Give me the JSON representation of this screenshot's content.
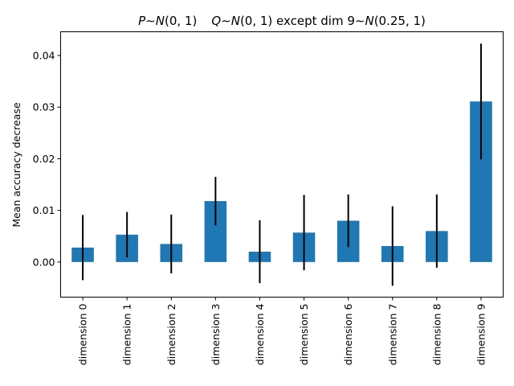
{
  "chart_data": {
    "type": "bar",
    "title": {
      "p": "P",
      "sim": "∼",
      "pdist": "N",
      "pargs": "(0, 1)",
      "q": "Q",
      "qdist": "N",
      "qargs": "(0, 1)",
      "except": " except dim 9",
      "dist9": "N",
      "args9": "(0.25, 1)"
    },
    "ylabel": "Mean accuracy decrease",
    "xlabel": "",
    "categories": [
      "dimension 0",
      "dimension 1",
      "dimension 2",
      "dimension 3",
      "dimension 4",
      "dimension 5",
      "dimension 6",
      "dimension 7",
      "dimension 8",
      "dimension 9"
    ],
    "values": [
      0.0028,
      0.0053,
      0.0035,
      0.0118,
      0.002,
      0.0057,
      0.008,
      0.0031,
      0.006,
      0.0311
    ],
    "errors": [
      0.0063,
      0.0044,
      0.0057,
      0.0047,
      0.0061,
      0.0073,
      0.0051,
      0.0077,
      0.0071,
      0.0112
    ],
    "yticks": [
      0.0,
      0.01,
      0.02,
      0.03,
      0.04
    ],
    "ytick_labels": [
      "0.00",
      "0.01",
      "0.02",
      "0.03",
      "0.04"
    ],
    "ylim": [
      -0.0068,
      0.0446
    ],
    "bar_color": "#1f77b4",
    "error_color": "#000000",
    "grid": false,
    "legend": "none"
  }
}
